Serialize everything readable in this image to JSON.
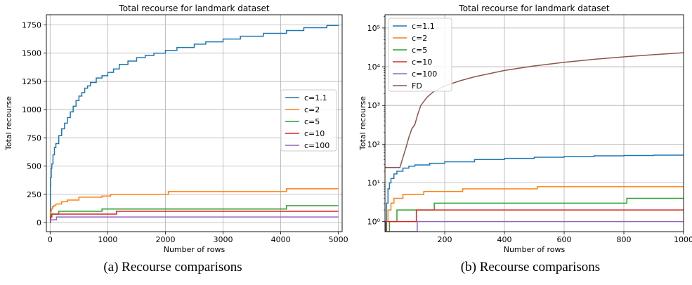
{
  "captions": [
    "(a) Recourse comparisons",
    "(b) Recourse comparisons"
  ],
  "chart_data": [
    {
      "type": "line",
      "title": "Total recourse for landmark dataset",
      "xlabel": "Number of rows",
      "ylabel": "Total recourse",
      "xlim": [
        -65,
        5065
      ],
      "ylim": [
        -80,
        1840
      ],
      "xscale": "linear",
      "yscale": "linear",
      "grid": true,
      "legend": "center-right",
      "xticks": [
        0,
        1000,
        2000,
        3000,
        4000,
        5000
      ],
      "yticks": [
        0,
        250,
        500,
        750,
        1000,
        1250,
        1500,
        1750
      ],
      "series": [
        {
          "name": "c=1.1",
          "color": "#1f77b4",
          "step": true,
          "points": [
            [
              0,
              0
            ],
            [
              5,
              330
            ],
            [
              10,
              400
            ],
            [
              20,
              480
            ],
            [
              30,
              520
            ],
            [
              50,
              600
            ],
            [
              75,
              665
            ],
            [
              100,
              700
            ],
            [
              150,
              770
            ],
            [
              200,
              830
            ],
            [
              250,
              880
            ],
            [
              300,
              930
            ],
            [
              350,
              980
            ],
            [
              400,
              1030
            ],
            [
              450,
              1080
            ],
            [
              500,
              1120
            ],
            [
              550,
              1150
            ],
            [
              600,
              1190
            ],
            [
              650,
              1210
            ],
            [
              700,
              1240
            ],
            [
              800,
              1280
            ],
            [
              900,
              1300
            ],
            [
              1000,
              1330
            ],
            [
              1100,
              1360
            ],
            [
              1200,
              1400
            ],
            [
              1350,
              1430
            ],
            [
              1500,
              1460
            ],
            [
              1650,
              1480
            ],
            [
              1800,
              1500
            ],
            [
              2000,
              1525
            ],
            [
              2200,
              1550
            ],
            [
              2500,
              1580
            ],
            [
              2700,
              1600
            ],
            [
              3000,
              1625
            ],
            [
              3300,
              1650
            ],
            [
              3700,
              1675
            ],
            [
              4100,
              1700
            ],
            [
              4400,
              1725
            ],
            [
              4800,
              1745
            ],
            [
              5000,
              1750
            ]
          ]
        },
        {
          "name": "c=2",
          "color": "#ff7f0e",
          "step": true,
          "points": [
            [
              0,
              0
            ],
            [
              5,
              95
            ],
            [
              20,
              120
            ],
            [
              40,
              140
            ],
            [
              60,
              150
            ],
            [
              100,
              165
            ],
            [
              200,
              185
            ],
            [
              300,
              200
            ],
            [
              500,
              225
            ],
            [
              900,
              235
            ],
            [
              1050,
              250
            ],
            [
              2050,
              275
            ],
            [
              4100,
              300
            ],
            [
              5000,
              300
            ]
          ]
        },
        {
          "name": "c=5",
          "color": "#2ca02c",
          "step": true,
          "points": [
            [
              0,
              0
            ],
            [
              10,
              75
            ],
            [
              150,
              100
            ],
            [
              900,
              120
            ],
            [
              4100,
              150
            ],
            [
              5000,
              150
            ]
          ]
        },
        {
          "name": "c=10",
          "color": "#d62728",
          "step": true,
          "points": [
            [
              0,
              0
            ],
            [
              5,
              50
            ],
            [
              30,
              75
            ],
            [
              1150,
              100
            ],
            [
              5000,
              100
            ]
          ]
        },
        {
          "name": "c=100",
          "color": "#9467bd",
          "step": true,
          "points": [
            [
              0,
              0
            ],
            [
              10,
              25
            ],
            [
              110,
              50
            ],
            [
              5000,
              50
            ]
          ]
        }
      ]
    },
    {
      "type": "line",
      "title": "Total recourse for landmark dataset",
      "xlabel": "Number of rows",
      "ylabel": "Total recourse",
      "xlim": [
        0,
        1000
      ],
      "ylim": [
        0.55,
        220000
      ],
      "xscale": "linear",
      "yscale": "log",
      "grid": true,
      "legend": "top-left",
      "xticks": [
        200,
        400,
        600,
        800,
        1000
      ],
      "yticks": [
        1,
        10,
        100,
        1000,
        10000,
        100000
      ],
      "ytick_labels": [
        "10⁰",
        "10¹",
        "10²",
        "10³",
        "10⁴",
        "10⁵"
      ],
      "series": [
        {
          "name": "c=1.1",
          "color": "#1f77b4",
          "step": true,
          "points": [
            [
              0,
              0.55
            ],
            [
              2,
              1
            ],
            [
              5,
              3
            ],
            [
              10,
              7
            ],
            [
              15,
              10
            ],
            [
              20,
              13
            ],
            [
              30,
              17
            ],
            [
              40,
              20
            ],
            [
              60,
              24
            ],
            [
              80,
              27
            ],
            [
              100,
              29
            ],
            [
              150,
              32
            ],
            [
              200,
              35
            ],
            [
              300,
              40
            ],
            [
              400,
              43
            ],
            [
              500,
              46
            ],
            [
              600,
              48
            ],
            [
              700,
              50
            ],
            [
              800,
              51
            ],
            [
              900,
              52
            ],
            [
              1000,
              53
            ]
          ]
        },
        {
          "name": "c=2",
          "color": "#ff7f0e",
          "step": true,
          "points": [
            [
              0,
              0.55
            ],
            [
              5,
              1
            ],
            [
              10,
              2
            ],
            [
              20,
              3
            ],
            [
              30,
              4
            ],
            [
              60,
              5
            ],
            [
              130,
              6
            ],
            [
              260,
              7
            ],
            [
              510,
              8
            ],
            [
              1000,
              8
            ]
          ]
        },
        {
          "name": "c=5",
          "color": "#2ca02c",
          "step": true,
          "points": [
            [
              0,
              0.55
            ],
            [
              15,
              1
            ],
            [
              40,
              2
            ],
            [
              165,
              3
            ],
            [
              810,
              4
            ],
            [
              1000,
              4
            ]
          ]
        },
        {
          "name": "c=10",
          "color": "#d62728",
          "step": true,
          "points": [
            [
              0,
              0.55
            ],
            [
              5,
              1
            ],
            [
              105,
              2
            ],
            [
              1000,
              2
            ]
          ]
        },
        {
          "name": "c=100",
          "color": "#9467bd",
          "step": true,
          "points": [
            [
              0,
              0.55
            ],
            [
              108,
              1
            ],
            [
              1000,
              1
            ]
          ]
        },
        {
          "name": "FD",
          "color": "#8c564b",
          "step": false,
          "points": [
            [
              0,
              25
            ],
            [
              50,
              25
            ],
            [
              60,
              45
            ],
            [
              70,
              80
            ],
            [
              80,
              150
            ],
            [
              90,
              250
            ],
            [
              100,
              320
            ],
            [
              110,
              600
            ],
            [
              120,
              1000
            ],
            [
              140,
              1600
            ],
            [
              160,
              2200
            ],
            [
              200,
              3200
            ],
            [
              250,
              4300
            ],
            [
              300,
              5500
            ],
            [
              400,
              8000
            ],
            [
              500,
              10500
            ],
            [
              600,
              13000
            ],
            [
              700,
              15500
            ],
            [
              800,
              18000
            ],
            [
              900,
              20500
            ],
            [
              1000,
              23000
            ]
          ]
        }
      ]
    }
  ]
}
